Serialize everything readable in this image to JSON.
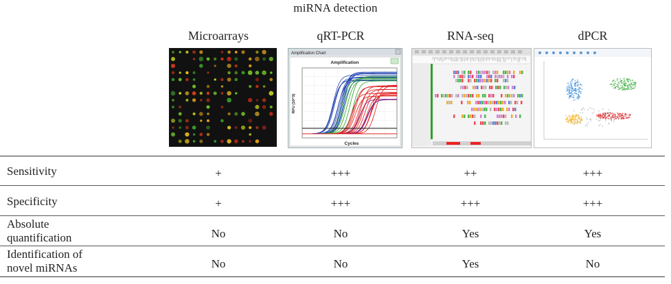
{
  "title": "miRNA detection",
  "columns": [
    "Microarrays",
    "qRT-PCR",
    "RNA-seq",
    "dPCR"
  ],
  "qpcr_chart": {
    "window_title": "Amplification Chart",
    "plot_title": "Amplification",
    "xlabel": "Cycles",
    "ylabel": "RFU (10^3)"
  },
  "rows": [
    {
      "label": "Sensitivity",
      "values": [
        "+",
        "+++",
        "++",
        "+++"
      ]
    },
    {
      "label": "Specificity",
      "values": [
        "+",
        "+++",
        "+++",
        "+++"
      ]
    },
    {
      "label": "Absolute quantification",
      "label_lines": [
        "Absolute",
        "quantification"
      ],
      "values": [
        "No",
        "No",
        "Yes",
        "Yes"
      ]
    },
    {
      "label": "Identification of novel miRNAs",
      "label_lines": [
        "Identification of",
        "novel miRNAs"
      ],
      "values": [
        "No",
        "No",
        "Yes",
        "No"
      ]
    }
  ]
}
